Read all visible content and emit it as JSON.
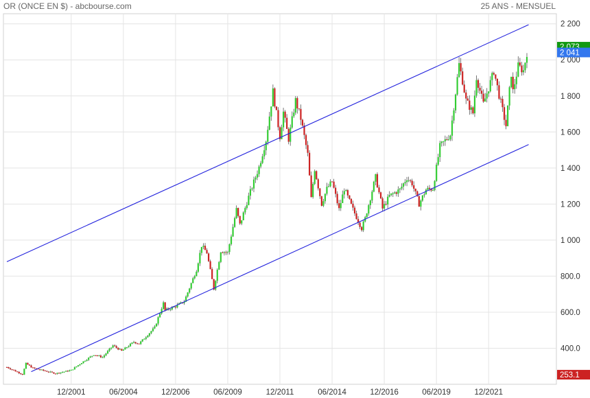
{
  "header": {
    "title": "OR (ONCE EN $) - abcbourse.com",
    "period": "25 ANS - MENSUEL"
  },
  "colors": {
    "up": "#33cc33",
    "down": "#cc2222",
    "channel": "#2222dd",
    "grid": "#e4e4e4",
    "badge_last": "#3377ee",
    "badge_high": "#119911",
    "badge_low": "#cc2222"
  },
  "chart_data": {
    "type": "candlestick",
    "frequency": "monthly",
    "y_ticks": [
      "400.0",
      "600.0",
      "800.0",
      "1 000",
      "1 200",
      "1 400",
      "1 600",
      "1 800",
      "2 000",
      "2 200"
    ],
    "y_tick_values": [
      400,
      600,
      800,
      1000,
      1200,
      1400,
      1600,
      1800,
      2000,
      2200
    ],
    "x_ticks": [
      "12/2001",
      "06/2004",
      "12/2006",
      "06/2009",
      "12/2011",
      "06/2014",
      "12/2016",
      "06/2019",
      "12/2021"
    ],
    "x_tick_dates": [
      "2001-12",
      "2004-06",
      "2006-12",
      "2009-06",
      "2011-12",
      "2014-06",
      "2016-12",
      "2019-06",
      "2021-12"
    ],
    "x_range": [
      "1998-11",
      "2023-10"
    ],
    "y_range": [
      200,
      2225
    ],
    "grid": true,
    "anchors": [
      {
        "date": "1998-11",
        "price": 295
      },
      {
        "date": "1999-08",
        "price": 255
      },
      {
        "date": "1999-10",
        "price": 315
      },
      {
        "date": "2000-02",
        "price": 290
      },
      {
        "date": "2001-03",
        "price": 260
      },
      {
        "date": "2001-12",
        "price": 278
      },
      {
        "date": "2002-06",
        "price": 320
      },
      {
        "date": "2003-01",
        "price": 365
      },
      {
        "date": "2003-06",
        "price": 350
      },
      {
        "date": "2003-12",
        "price": 415
      },
      {
        "date": "2004-05",
        "price": 385
      },
      {
        "date": "2004-12",
        "price": 435
      },
      {
        "date": "2005-03",
        "price": 425
      },
      {
        "date": "2005-12",
        "price": 515
      },
      {
        "date": "2006-05",
        "price": 650
      },
      {
        "date": "2006-06",
        "price": 610
      },
      {
        "date": "2006-12",
        "price": 632
      },
      {
        "date": "2007-05",
        "price": 660
      },
      {
        "date": "2007-12",
        "price": 835
      },
      {
        "date": "2008-03",
        "price": 970
      },
      {
        "date": "2008-06",
        "price": 930
      },
      {
        "date": "2008-10",
        "price": 730
      },
      {
        "date": "2009-02",
        "price": 940
      },
      {
        "date": "2009-06",
        "price": 930
      },
      {
        "date": "2009-11",
        "price": 1170
      },
      {
        "date": "2010-01",
        "price": 1085
      },
      {
        "date": "2010-06",
        "price": 1240
      },
      {
        "date": "2010-12",
        "price": 1405
      },
      {
        "date": "2011-04",
        "price": 1555
      },
      {
        "date": "2011-08",
        "price": 1825
      },
      {
        "date": "2011-12",
        "price": 1575
      },
      {
        "date": "2012-02",
        "price": 1710
      },
      {
        "date": "2012-05",
        "price": 1560
      },
      {
        "date": "2012-09",
        "price": 1775
      },
      {
        "date": "2012-12",
        "price": 1675
      },
      {
        "date": "2013-04",
        "price": 1475
      },
      {
        "date": "2013-06",
        "price": 1230
      },
      {
        "date": "2013-08",
        "price": 1395
      },
      {
        "date": "2013-12",
        "price": 1200
      },
      {
        "date": "2014-03",
        "price": 1285
      },
      {
        "date": "2014-06",
        "price": 1325
      },
      {
        "date": "2014-10",
        "price": 1170
      },
      {
        "date": "2015-01",
        "price": 1285
      },
      {
        "date": "2015-06",
        "price": 1170
      },
      {
        "date": "2015-11",
        "price": 1065
      },
      {
        "date": "2016-01",
        "price": 1120
      },
      {
        "date": "2016-07",
        "price": 1350
      },
      {
        "date": "2016-11",
        "price": 1175
      },
      {
        "date": "2017-03",
        "price": 1245
      },
      {
        "date": "2017-09",
        "price": 1280
      },
      {
        "date": "2018-01",
        "price": 1345
      },
      {
        "date": "2018-04",
        "price": 1315
      },
      {
        "date": "2018-08",
        "price": 1200
      },
      {
        "date": "2018-12",
        "price": 1280
      },
      {
        "date": "2019-04",
        "price": 1285
      },
      {
        "date": "2019-08",
        "price": 1520
      },
      {
        "date": "2020-02",
        "price": 1585
      },
      {
        "date": "2020-07",
        "price": 1975
      },
      {
        "date": "2020-09",
        "price": 1885
      },
      {
        "date": "2020-11",
        "price": 1775
      },
      {
        "date": "2021-03",
        "price": 1705
      },
      {
        "date": "2021-05",
        "price": 1905
      },
      {
        "date": "2021-09",
        "price": 1755
      },
      {
        "date": "2022-02",
        "price": 1905
      },
      {
        "date": "2022-03",
        "price": 1940
      },
      {
        "date": "2022-06",
        "price": 1805
      },
      {
        "date": "2022-10",
        "price": 1635
      },
      {
        "date": "2023-01",
        "price": 1925
      },
      {
        "date": "2023-02",
        "price": 1825
      },
      {
        "date": "2023-05",
        "price": 1965
      },
      {
        "date": "2023-08",
        "price": 1940
      },
      {
        "date": "2023-10",
        "price": 2041
      }
    ],
    "channel_lines": [
      {
        "name": "upper",
        "from": {
          "date": "1998-11",
          "price": 880
        },
        "to": {
          "date": "2023-11",
          "price": 2195
        }
      },
      {
        "name": "lower",
        "from": {
          "date": "2000-01",
          "price": 270
        },
        "to": {
          "date": "2023-11",
          "price": 1530
        }
      }
    ],
    "badges": {
      "high": "2 073",
      "last": "2 041",
      "low": "253.1"
    },
    "badge_values": {
      "high": 2073,
      "last": 2041,
      "low": 253.1
    }
  }
}
